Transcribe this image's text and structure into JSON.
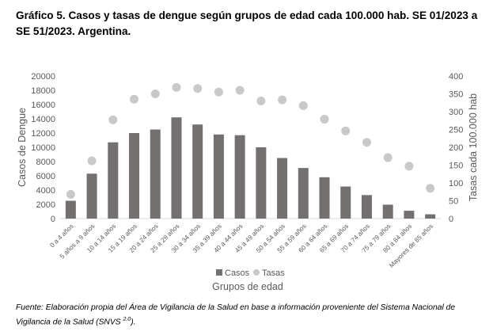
{
  "figure": {
    "title": "Gráfico 5. Casos y tasas de dengue según grupos de edad cada 100.000 hab. SE 01/2023 a SE 51/2023. Argentina.",
    "source_main": "Fuente: Elaboración propia del Área de Vigilancia de la Salud en base a información proveniente del Sistema Nacional de Vigilancia de la Salud (SNVS ",
    "source_sup": "2.0",
    "source_end": ")."
  },
  "chart_data": {
    "type": "bar",
    "categories": [
      "0 a 4 años",
      "5 años a 9 años",
      "10 a 14 años",
      "15 a 19 años",
      "20 a 24 años",
      "25 a 29 años",
      "30 a 34 años",
      "35 a 39 años",
      "40 a 44 años",
      "45 a 49 años",
      "50 a 54 años",
      "55 a 59 años",
      "60 a 64 años",
      "65 a 69 años",
      "70 a 74 años",
      "75 a 79 años",
      "80 a 84 años",
      "Mayores de 85 años"
    ],
    "series": [
      {
        "name": "Casos",
        "kind": "bar",
        "axis": "left",
        "color": "#747070",
        "values": [
          2500,
          6300,
          10700,
          12000,
          12500,
          14200,
          13200,
          11800,
          11700,
          10000,
          8500,
          7100,
          5800,
          4500,
          3300,
          1950,
          1100,
          600
        ]
      },
      {
        "name": "Tasas",
        "kind": "scatter",
        "axis": "right",
        "color": "#c9c9c9",
        "values": [
          68,
          162,
          277,
          335,
          350,
          368,
          365,
          355,
          360,
          330,
          333,
          317,
          279,
          246,
          214,
          171,
          147,
          85
        ]
      }
    ],
    "xlabel": "Grupos de edad",
    "ylabel": "Casos de Dengue",
    "y2label": "Tasas  cada 100.000 hab",
    "ylim": [
      0,
      20000
    ],
    "y2lim": [
      0,
      400
    ],
    "yticks": [
      "0",
      "2000",
      "4000",
      "6000",
      "8000",
      "10000",
      "12000",
      "14000",
      "16000",
      "18000",
      "20000"
    ],
    "y2ticks": [
      "0",
      "50",
      "100",
      "150",
      "200",
      "250",
      "300",
      "350",
      "400"
    ],
    "grid": false,
    "legend": "bottom-center"
  }
}
